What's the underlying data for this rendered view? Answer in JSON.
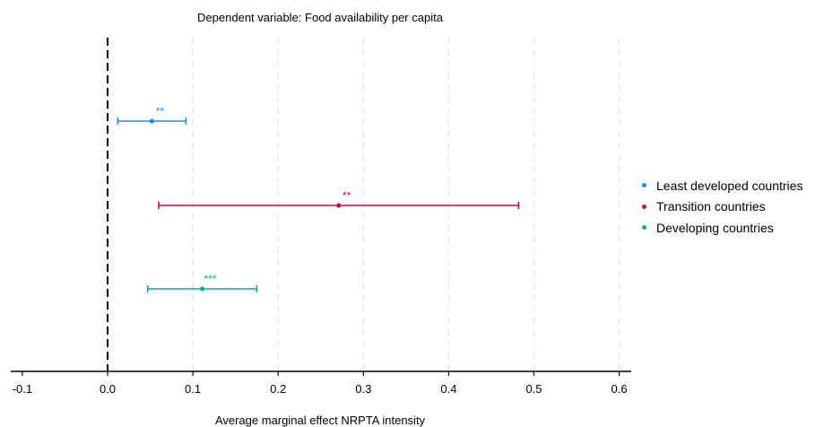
{
  "chart_data": {
    "type": "forest",
    "title": "Dependent variable: Food availability per capita",
    "xlabel": "Average marginal effect NRPTA intensity",
    "ylabel": "",
    "xlim": [
      -0.11,
      0.615
    ],
    "xticks": [
      -0.1,
      0.0,
      0.1,
      0.2,
      0.3,
      0.4,
      0.5,
      0.6
    ],
    "xtick_labels": [
      "-0.1",
      "0.0",
      "0.1",
      "0.2",
      "0.3",
      "0.4",
      "0.5",
      "0.6"
    ],
    "reference_line": 0.0,
    "grid": "vertical dashed",
    "legend_position": "right",
    "series": [
      {
        "name": "Least developed countries",
        "color": "#1f8ce0",
        "estimate": 0.052,
        "ci_low": 0.012,
        "ci_high": 0.092,
        "significance": "**"
      },
      {
        "name": "Transition countries",
        "color": "#d6004f",
        "estimate": 0.271,
        "ci_low": 0.06,
        "ci_high": 0.482,
        "significance": "**"
      },
      {
        "name": "Developing countries",
        "color": "#00b383",
        "estimate": 0.111,
        "ci_low": 0.047,
        "ci_high": 0.175,
        "significance": "***"
      }
    ]
  }
}
